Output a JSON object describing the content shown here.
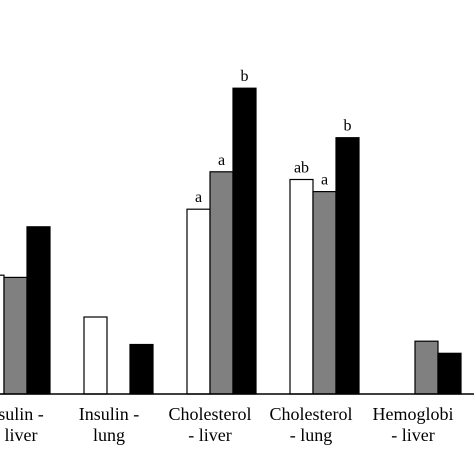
{
  "chart_data": {
    "type": "bar",
    "categories": [
      "Insulin - liver",
      "Insulin - lung",
      "Cholesterol - liver",
      "Cholesterol - lung",
      "Hemoglobin - liver"
    ],
    "category_lines": [
      [
        "sulin -",
        "liver"
      ],
      [
        "Insulin -",
        "lung"
      ],
      [
        "Cholesterol",
        "- liver"
      ],
      [
        "Cholesterol",
        "- lung"
      ],
      [
        "Hemoglobi",
        "- liver"
      ]
    ],
    "series": [
      {
        "color": "#ffffff",
        "values": [
          108,
          70,
          168,
          195,
          null
        ]
      },
      {
        "color": "#808080",
        "values": [
          106,
          null,
          202,
          184,
          48
        ]
      },
      {
        "color": "#000000",
        "values": [
          152,
          45,
          278,
          233,
          37
        ]
      }
    ],
    "annotations": [
      [
        "",
        "",
        "a",
        "ab",
        ""
      ],
      [
        "",
        "",
        "a",
        "a",
        ""
      ],
      [
        "",
        "",
        "b",
        "b",
        ""
      ]
    ],
    "ylim": [
      0,
      300
    ],
    "grid": false,
    "legend": "none"
  }
}
